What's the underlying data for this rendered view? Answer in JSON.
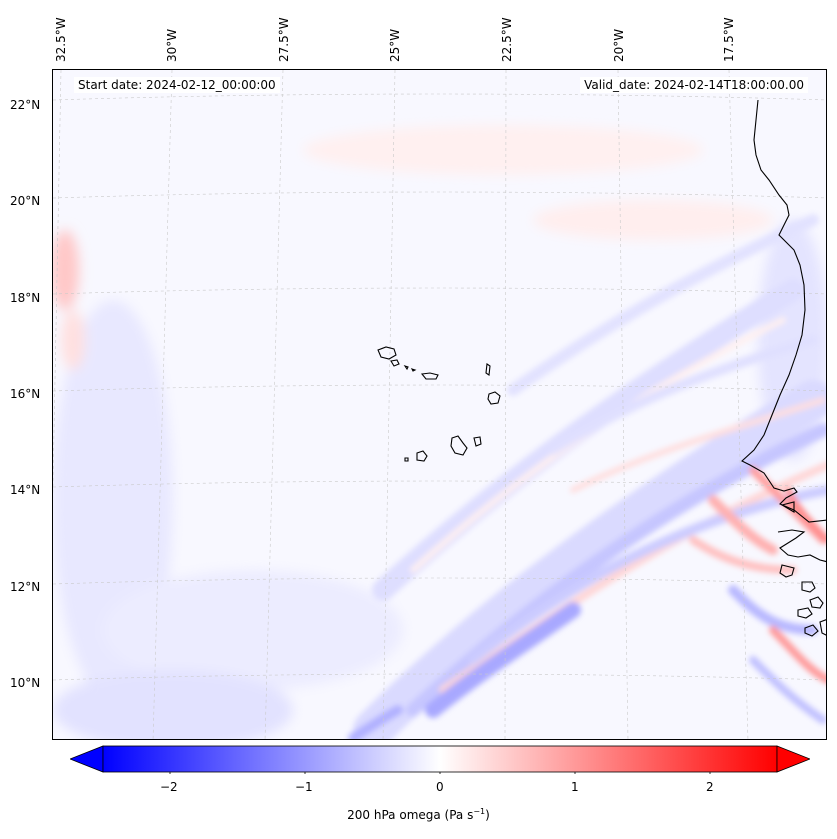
{
  "map": {
    "start_date": "Start date: 2024-02-12_00:00:00",
    "valid_date": "Valid_date: 2024-02-14T18:00:00.00",
    "lon_labels": [
      "32.5°W",
      "30°W",
      "27.5°W",
      "25°W",
      "22.5°W",
      "20°W",
      "17.5°W"
    ],
    "lat_labels": [
      "22°N",
      "20°N",
      "18°N",
      "16°N",
      "14°N",
      "12°N",
      "10°N"
    ],
    "extent": {
      "lon_min": -32.8,
      "lon_max": -15.8,
      "lat_min": 8.9,
      "lat_max": 22.7
    },
    "gridlines": true,
    "projection": "lambert-conformal"
  },
  "colorbar": {
    "cmap": "bwr",
    "vmin": -2.5,
    "vmax": 2.5,
    "ticks": [
      "−2",
      "−1",
      "0",
      "1",
      "2"
    ],
    "label_text": "200 hPa omega (Pa s",
    "label_sup": "−1",
    "label_close": ")",
    "extend": "both",
    "colors": {
      "min": "#0000ff",
      "mid": "#ffffff",
      "max": "#ff0000"
    }
  },
  "features": [
    {
      "name": "cape-verde-islands"
    },
    {
      "name": "west-africa-coastline"
    }
  ]
}
